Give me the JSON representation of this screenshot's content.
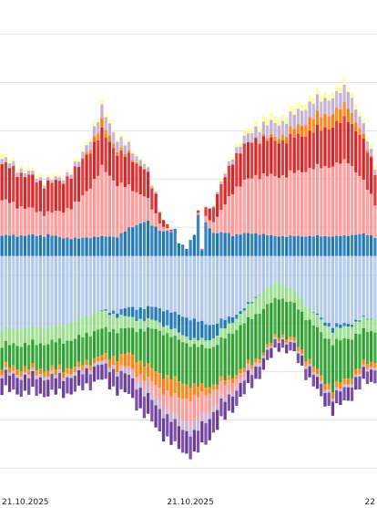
{
  "chart_data": {
    "type": "bar",
    "stacked": true,
    "diverging": true,
    "grid": true,
    "legend": "none",
    "title": "",
    "xlabel": "",
    "ylabel": "",
    "ylim": [
      -250,
      260
    ],
    "x_tick_labels": [
      "21.10.2025",
      "21.10.2025",
      "22"
    ],
    "x_tick_at_bar": [
      0,
      49,
      96
    ],
    "gridline_values": [
      230,
      180,
      130,
      80,
      30,
      -20,
      -70,
      -120,
      -170,
      -220
    ],
    "n_bars": 98,
    "positive_profile": {
      "knots": [
        [
          0,
          105
        ],
        [
          10,
          83
        ],
        [
          15,
          82
        ],
        [
          20,
          100
        ],
        [
          26,
          155
        ],
        [
          30,
          126
        ],
        [
          37,
          100
        ],
        [
          42,
          40
        ],
        [
          47,
          10
        ],
        [
          50,
          20
        ],
        [
          56,
          65
        ],
        [
          60,
          110
        ],
        [
          66,
          140
        ],
        [
          74,
          148
        ],
        [
          80,
          165
        ],
        [
          87,
          173
        ],
        [
          90,
          180
        ],
        [
          93,
          150
        ],
        [
          97,
          100
        ]
      ],
      "dips": [
        {
          "index": 51,
          "value": 48
        },
        {
          "index": 52,
          "value": 8
        },
        {
          "index": 53,
          "value": 52
        }
      ]
    },
    "negative_profile": {
      "knots": [
        [
          0,
          140
        ],
        [
          10,
          143
        ],
        [
          15,
          143
        ],
        [
          20,
          140
        ],
        [
          25,
          128
        ],
        [
          33,
          145
        ],
        [
          40,
          178
        ],
        [
          45,
          198
        ],
        [
          50,
          208
        ],
        [
          55,
          183
        ],
        [
          62,
          148
        ],
        [
          68,
          118
        ],
        [
          72,
          93
        ],
        [
          76,
          103
        ],
        [
          80,
          128
        ],
        [
          83,
          148
        ],
        [
          86,
          160
        ],
        [
          90,
          150
        ],
        [
          93,
          135
        ],
        [
          97,
          130
        ]
      ]
    },
    "series": [
      {
        "name": "",
        "color": "#1f77b4",
        "side": "positive",
        "band": "light",
        "share_knots": [
          [
            0,
            0.2
          ],
          [
            12,
            0.27
          ],
          [
            20,
            0.18
          ],
          [
            26,
            0.13
          ],
          [
            30,
            0.16
          ],
          [
            40,
            0.45
          ],
          [
            45,
            1.0
          ],
          [
            50,
            1.0
          ],
          [
            56,
            0.35
          ],
          [
            60,
            0.2
          ],
          [
            70,
            0.15
          ],
          [
            80,
            0.13
          ],
          [
            90,
            0.12
          ],
          [
            97,
            0.2
          ]
        ]
      },
      {
        "name": "",
        "color": "#ff9896",
        "side": "positive",
        "band": "light",
        "share_knots": [
          [
            0,
            0.35
          ],
          [
            12,
            0.28
          ],
          [
            20,
            0.38
          ],
          [
            26,
            0.46
          ],
          [
            30,
            0.44
          ],
          [
            40,
            0.2
          ],
          [
            45,
            0.0
          ],
          [
            50,
            0.0
          ],
          [
            56,
            0.25
          ],
          [
            60,
            0.42
          ],
          [
            70,
            0.44
          ],
          [
            80,
            0.44
          ],
          [
            90,
            0.44
          ],
          [
            97,
            0.36
          ]
        ]
      },
      {
        "name": "",
        "color": "#d62728",
        "side": "positive",
        "band": "light",
        "share_knots": [
          [
            0,
            0.36
          ],
          [
            12,
            0.38
          ],
          [
            20,
            0.36
          ],
          [
            26,
            0.24
          ],
          [
            30,
            0.26
          ],
          [
            40,
            0.3
          ],
          [
            45,
            0.0
          ],
          [
            50,
            0.0
          ],
          [
            56,
            0.35
          ],
          [
            60,
            0.3
          ],
          [
            70,
            0.26
          ],
          [
            80,
            0.24
          ],
          [
            90,
            0.25
          ],
          [
            97,
            0.34
          ]
        ]
      },
      {
        "name": "",
        "color": "#ff7f0e",
        "side": "positive",
        "band": "light",
        "share_knots": [
          [
            0,
            0.0
          ],
          [
            20,
            0.0
          ],
          [
            26,
            0.06
          ],
          [
            30,
            0.03
          ],
          [
            40,
            0.0
          ],
          [
            56,
            0.0
          ],
          [
            65,
            0.0
          ],
          [
            75,
            0.05
          ],
          [
            80,
            0.09
          ],
          [
            90,
            0.08
          ],
          [
            97,
            0.0
          ]
        ]
      },
      {
        "name": "",
        "color": "#c5b0d5",
        "side": "positive",
        "band": "light",
        "share_knots": [
          [
            0,
            0.05
          ],
          [
            12,
            0.04
          ],
          [
            20,
            0.05
          ],
          [
            26,
            0.09
          ],
          [
            30,
            0.09
          ],
          [
            40,
            0.03
          ],
          [
            45,
            0.0
          ],
          [
            50,
            0.0
          ],
          [
            56,
            0.03
          ],
          [
            60,
            0.05
          ],
          [
            70,
            0.1
          ],
          [
            80,
            0.1
          ],
          [
            90,
            0.1
          ],
          [
            97,
            0.06
          ]
        ]
      },
      {
        "name": "",
        "color": "#ffff99",
        "side": "positive",
        "band": "light",
        "share_knots": [
          [
            0,
            0.04
          ],
          [
            20,
            0.03
          ],
          [
            30,
            0.02
          ],
          [
            40,
            0.02
          ],
          [
            45,
            0.0
          ],
          [
            50,
            0.0
          ],
          [
            56,
            0.02
          ],
          [
            70,
            0.05
          ],
          [
            90,
            0.03
          ],
          [
            97,
            0.04
          ]
        ]
      },
      {
        "name": "",
        "color": "#aec7e8",
        "side": "negative",
        "band": "light",
        "share_knots": [
          [
            0,
            0.54
          ],
          [
            15,
            0.51
          ],
          [
            25,
            0.45
          ],
          [
            33,
            0.37
          ],
          [
            40,
            0.3
          ],
          [
            45,
            0.3
          ],
          [
            50,
            0.32
          ],
          [
            55,
            0.4
          ],
          [
            62,
            0.4
          ],
          [
            68,
            0.3
          ],
          [
            72,
            0.28
          ],
          [
            80,
            0.42
          ],
          [
            86,
            0.46
          ],
          [
            97,
            0.5
          ]
        ]
      },
      {
        "name": "",
        "color": "#1f77b4",
        "side": "negative",
        "band": "light",
        "share_knots": [
          [
            0,
            0.0
          ],
          [
            25,
            0.0
          ],
          [
            30,
            0.03
          ],
          [
            33,
            0.07
          ],
          [
            40,
            0.08
          ],
          [
            45,
            0.09
          ],
          [
            50,
            0.1
          ],
          [
            55,
            0.08
          ],
          [
            62,
            0.02
          ],
          [
            68,
            0.0
          ],
          [
            80,
            0.0
          ],
          [
            86,
            0.03
          ],
          [
            97,
            0.0
          ]
        ]
      },
      {
        "name": "",
        "color": "#98df8a",
        "side": "negative",
        "band": "light",
        "share_knots": [
          [
            0,
            0.12
          ],
          [
            15,
            0.12
          ],
          [
            25,
            0.15
          ],
          [
            33,
            0.08
          ],
          [
            40,
            0.05
          ],
          [
            45,
            0.04
          ],
          [
            50,
            0.03
          ],
          [
            55,
            0.05
          ],
          [
            62,
            0.08
          ],
          [
            68,
            0.16
          ],
          [
            72,
            0.17
          ],
          [
            80,
            0.1
          ],
          [
            86,
            0.08
          ],
          [
            97,
            0.1
          ]
        ]
      },
      {
        "name": "",
        "color": "#2ca02c",
        "side": "negative",
        "band": "light",
        "share_knots": [
          [
            0,
            0.16
          ],
          [
            15,
            0.2
          ],
          [
            25,
            0.22
          ],
          [
            33,
            0.18
          ],
          [
            40,
            0.25
          ],
          [
            45,
            0.22
          ],
          [
            50,
            0.2
          ],
          [
            55,
            0.22
          ],
          [
            62,
            0.32
          ],
          [
            68,
            0.38
          ],
          [
            72,
            0.4
          ],
          [
            80,
            0.32
          ],
          [
            86,
            0.3
          ],
          [
            97,
            0.24
          ]
        ]
      },
      {
        "name": "",
        "color": "#ff7f0e",
        "side": "negative",
        "band": "light",
        "share_knots": [
          [
            0,
            0.04
          ],
          [
            15,
            0.04
          ],
          [
            25,
            0.04
          ],
          [
            33,
            0.1
          ],
          [
            40,
            0.08
          ],
          [
            45,
            0.09
          ],
          [
            50,
            0.06
          ],
          [
            55,
            0.03
          ],
          [
            62,
            0.03
          ],
          [
            68,
            0.03
          ],
          [
            72,
            0.03
          ],
          [
            80,
            0.04
          ],
          [
            86,
            0.04
          ],
          [
            97,
            0.04
          ]
        ]
      },
      {
        "name": "",
        "color": "#ff9896",
        "side": "negative",
        "band": "light",
        "share_knots": [
          [
            0,
            0.0
          ],
          [
            30,
            0.0
          ],
          [
            35,
            0.04
          ],
          [
            40,
            0.07
          ],
          [
            45,
            0.1
          ],
          [
            50,
            0.12
          ],
          [
            55,
            0.1
          ],
          [
            62,
            0.05
          ],
          [
            68,
            0.0
          ],
          [
            97,
            0.0
          ]
        ]
      },
      {
        "name": "",
        "color": "#c5b0d5",
        "side": "negative",
        "band": "light",
        "share_knots": [
          [
            0,
            0.02
          ],
          [
            30,
            0.03
          ],
          [
            40,
            0.05
          ],
          [
            45,
            0.04
          ],
          [
            50,
            0.06
          ],
          [
            55,
            0.03
          ],
          [
            62,
            0.02
          ],
          [
            97,
            0.02
          ]
        ]
      },
      {
        "name": "",
        "color": "#6a3d9a",
        "side": "negative",
        "band": "dark",
        "share_knots": [
          [
            0,
            0.12
          ],
          [
            15,
            0.12
          ],
          [
            25,
            0.12
          ],
          [
            33,
            0.14
          ],
          [
            40,
            0.13
          ],
          [
            45,
            0.12
          ],
          [
            50,
            0.11
          ],
          [
            55,
            0.12
          ],
          [
            62,
            0.1
          ],
          [
            68,
            0.1
          ],
          [
            72,
            0.09
          ],
          [
            80,
            0.09
          ],
          [
            86,
            0.09
          ],
          [
            97,
            0.1
          ]
        ]
      }
    ]
  }
}
